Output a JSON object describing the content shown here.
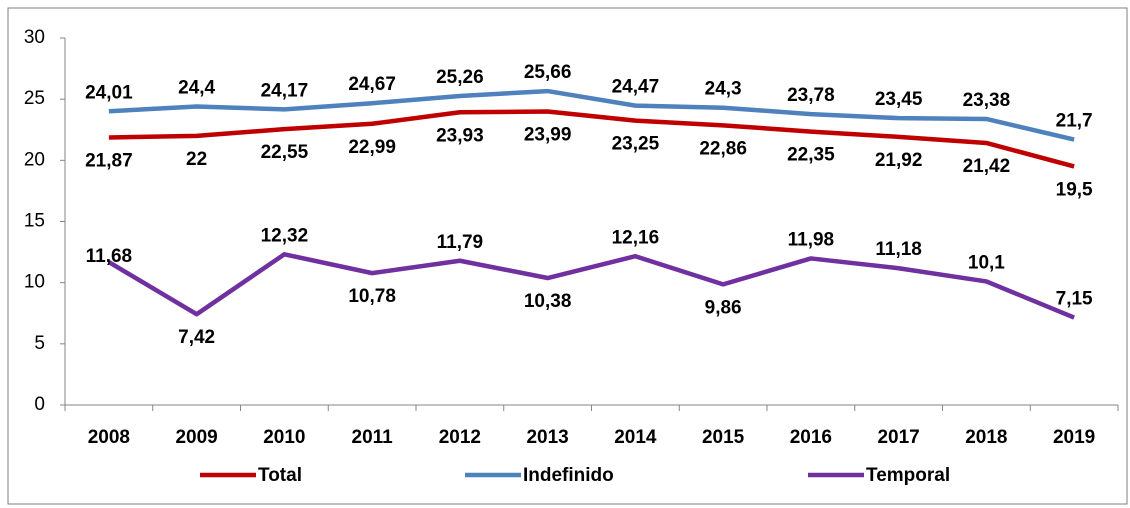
{
  "chart_data": {
    "type": "line",
    "categories": [
      "2008",
      "2009",
      "2010",
      "2011",
      "2012",
      "2013",
      "2014",
      "2015",
      "2016",
      "2017",
      "2018",
      "2019"
    ],
    "series": [
      {
        "name": "Total",
        "color": "#c00000",
        "values": [
          21.87,
          22,
          22.55,
          22.99,
          23.93,
          23.99,
          23.25,
          22.86,
          22.35,
          21.92,
          21.42,
          19.5
        ],
        "value_labels": [
          "21,87",
          "22",
          "22,55",
          "22,99",
          "23,93",
          "23,99",
          "23,25",
          "22,86",
          "22,35",
          "21,92",
          "21,42",
          "19,5"
        ]
      },
      {
        "name": "Indefinido",
        "color": "#4f81bd",
        "values": [
          24.01,
          24.4,
          24.17,
          24.67,
          25.26,
          25.66,
          24.47,
          24.3,
          23.78,
          23.45,
          23.38,
          21.7
        ],
        "value_labels": [
          "24,01",
          "24,4",
          "24,17",
          "24,67",
          "25,26",
          "25,66",
          "24,47",
          "24,3",
          "23,78",
          "23,45",
          "23,38",
          "21,7"
        ]
      },
      {
        "name": "Temporal",
        "color": "#7030a0",
        "values": [
          11.68,
          7.42,
          12.32,
          10.78,
          11.79,
          10.38,
          12.16,
          9.86,
          11.98,
          11.18,
          10.1,
          7.15
        ],
        "value_labels": [
          "11,68",
          "7,42",
          "12,32",
          "10,78",
          "11,79",
          "10,38",
          "12,16",
          "9,86",
          "11,98",
          "11,18",
          "10,1",
          "7,15"
        ]
      }
    ],
    "ylim": [
      0,
      30
    ],
    "yticks": [
      0,
      5,
      10,
      15,
      20,
      25,
      30
    ],
    "grid": false,
    "legend": "bottom"
  }
}
